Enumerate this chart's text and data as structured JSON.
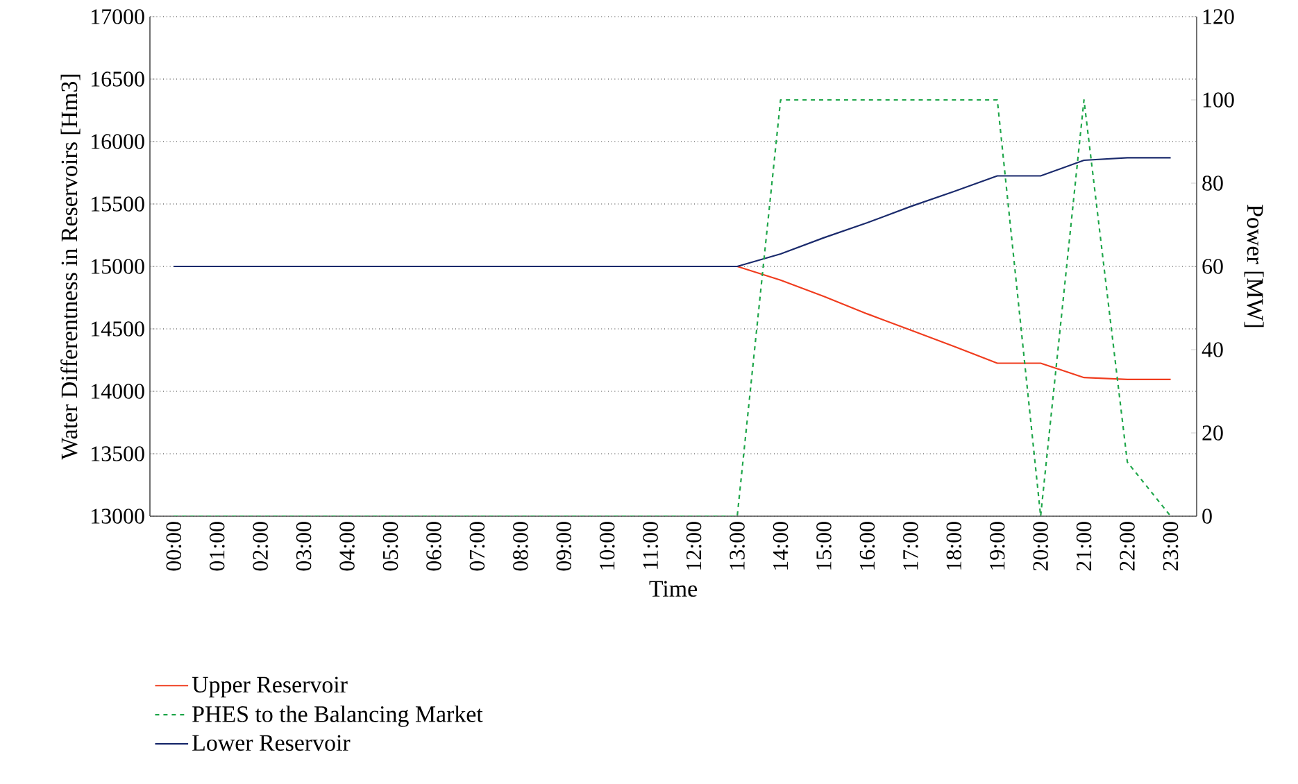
{
  "chart_data": {
    "type": "line",
    "xlabel": "Time",
    "ylabel": "Water Differentness in Reservoirs [Hm3]",
    "y2label": "Power [MW]",
    "categories": [
      "00:00",
      "01:00",
      "02:00",
      "03:00",
      "04:00",
      "05:00",
      "06:00",
      "07:00",
      "08:00",
      "09:00",
      "10:00",
      "11:00",
      "12:00",
      "13:00",
      "14:00",
      "15:00",
      "16:00",
      "17:00",
      "18:00",
      "19:00",
      "20:00",
      "21:00",
      "22:00",
      "23:00"
    ],
    "series": [
      {
        "name": "Upper Reservoir",
        "color": "#f03c1e",
        "line_style": "solid",
        "values": [
          null,
          null,
          null,
          null,
          null,
          null,
          null,
          null,
          null,
          null,
          null,
          null,
          null,
          15000,
          14890,
          14760,
          14620,
          14490,
          14360,
          14225,
          14225,
          14110,
          14095,
          14095
        ]
      },
      {
        "name": "PHES to the Balancing Market",
        "color": "#1fa64a",
        "line_style": "dashed",
        "axis": "y2",
        "values": [
          0,
          0,
          0,
          0,
          0,
          0,
          0,
          0,
          0,
          0,
          0,
          0,
          0,
          0,
          100,
          100,
          100,
          100,
          100,
          100,
          0,
          100,
          13,
          0
        ]
      },
      {
        "name": "Lower Reservoir",
        "color": "#1a2a6c",
        "line_style": "solid",
        "values": [
          15000,
          15000,
          15000,
          15000,
          15000,
          15000,
          15000,
          15000,
          15000,
          15000,
          15000,
          15000,
          15000,
          15000,
          15100,
          15230,
          15350,
          15480,
          15600,
          15725,
          15725,
          15850,
          15870,
          15870
        ]
      }
    ],
    "ylim": [
      13000,
      17000
    ],
    "yticks": [
      13000,
      13500,
      14000,
      14500,
      15000,
      15500,
      16000,
      16500,
      17000
    ],
    "y2lim": [
      0,
      120
    ],
    "y2ticks": [
      0,
      20,
      40,
      60,
      80,
      100,
      120
    ],
    "grid": "y",
    "legend": "bottom left",
    "marker": "none"
  }
}
